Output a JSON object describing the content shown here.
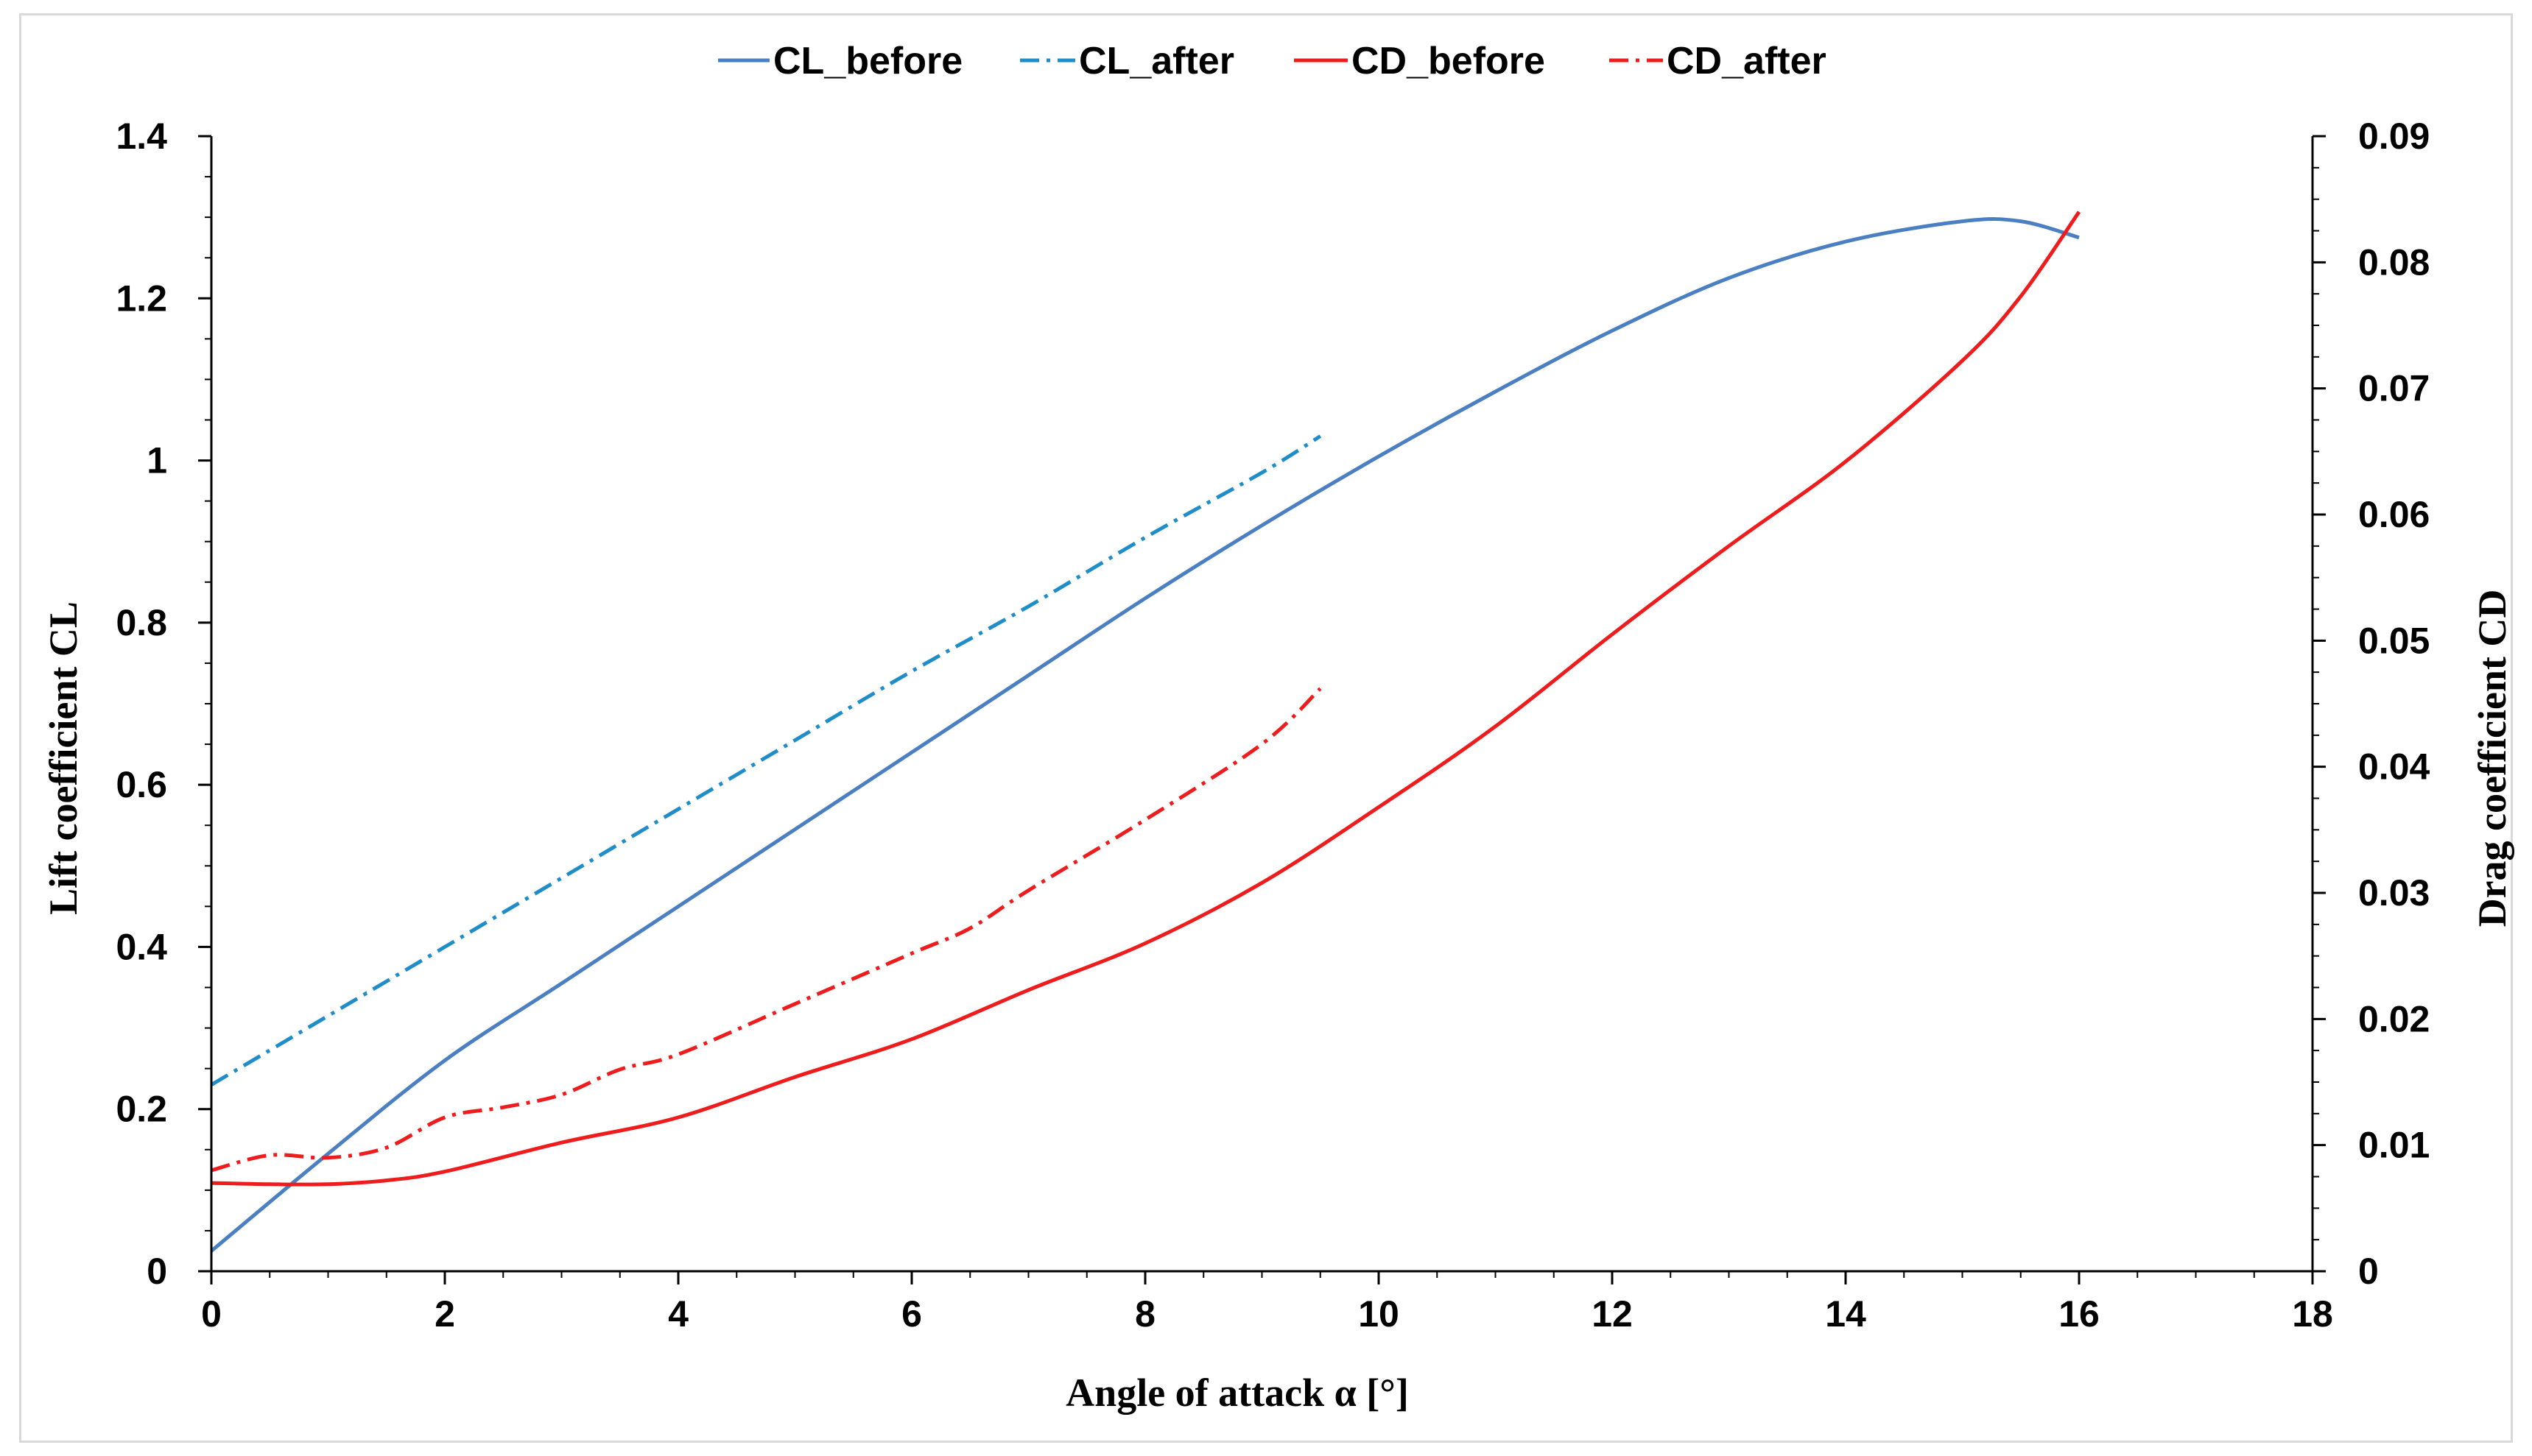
{
  "chart_data": {
    "type": "line",
    "title": "",
    "xlabel": "Angle of attack α [°]",
    "ylabel_left": "Lift coefficient CL",
    "ylabel_right": "Drag coefficient CD",
    "xlim": [
      0,
      18
    ],
    "ylim_left": [
      0,
      1.4
    ],
    "ylim_right": [
      0,
      0.09
    ],
    "x_ticks": [
      0,
      2,
      4,
      6,
      8,
      10,
      12,
      14,
      16,
      18
    ],
    "y_left_ticks": [
      0,
      0.2,
      0.4,
      0.6,
      0.8,
      1,
      1.2,
      1.4
    ],
    "y_left_tick_labels": [
      "0",
      "0.2",
      "0.4",
      "0.6",
      "0.8",
      "1",
      "1.2",
      "1.4"
    ],
    "y_right_ticks": [
      0,
      0.01,
      0.02,
      0.03,
      0.04,
      0.05,
      0.06,
      0.07,
      0.08,
      0.09
    ],
    "y_right_tick_labels": [
      "0",
      "0.01",
      "0.02",
      "0.03",
      "0.04",
      "0.05",
      "0.06",
      "0.07",
      "0.08",
      "0.09"
    ],
    "legend_position": "top-center",
    "grid": false,
    "series": [
      {
        "name": "CL_before",
        "axis": "left",
        "style": "solid",
        "color": "#4a7fc1",
        "x": [
          0,
          1,
          2,
          3,
          4,
          5,
          6,
          7,
          8,
          9,
          10,
          11,
          12,
          13,
          14,
          15,
          15.5,
          16
        ],
        "values": [
          0.025,
          0.145,
          0.26,
          0.355,
          0.45,
          0.545,
          0.64,
          0.735,
          0.83,
          0.92,
          1.005,
          1.085,
          1.16,
          1.225,
          1.27,
          1.295,
          1.295,
          1.275
        ]
      },
      {
        "name": "CL_after",
        "axis": "left",
        "style": "dashdot",
        "color": "#1f8dc8",
        "x": [
          0,
          1,
          2,
          3,
          4,
          5,
          6,
          7,
          8,
          9,
          9.5
        ],
        "values": [
          0.23,
          0.315,
          0.4,
          0.485,
          0.57,
          0.655,
          0.74,
          0.82,
          0.905,
          0.985,
          1.03
        ]
      },
      {
        "name": "CD_before",
        "axis": "right",
        "style": "solid",
        "color": "#ee1c1c",
        "x": [
          0,
          0.5,
          1,
          1.5,
          2,
          3,
          4,
          5,
          6,
          7,
          8,
          9,
          10,
          11,
          12,
          13,
          14,
          15,
          15.5,
          16
        ],
        "values": [
          0.007,
          0.0069,
          0.0069,
          0.0072,
          0.0079,
          0.0102,
          0.0122,
          0.0154,
          0.0184,
          0.0223,
          0.026,
          0.0308,
          0.0368,
          0.0432,
          0.0505,
          0.0575,
          0.0642,
          0.0722,
          0.0773,
          0.084
        ]
      },
      {
        "name": "CD_after",
        "axis": "right",
        "style": "dashdot",
        "color": "#ee1c1c",
        "x": [
          0,
          0.5,
          1,
          1.5,
          2,
          2.5,
          3,
          3.5,
          4,
          5,
          6,
          6.5,
          7,
          8,
          9,
          9.5
        ],
        "values": [
          0.008,
          0.0092,
          0.009,
          0.0098,
          0.0122,
          0.013,
          0.014,
          0.016,
          0.0172,
          0.0212,
          0.0252,
          0.0272,
          0.0302,
          0.0358,
          0.0418,
          0.0462
        ]
      }
    ]
  }
}
